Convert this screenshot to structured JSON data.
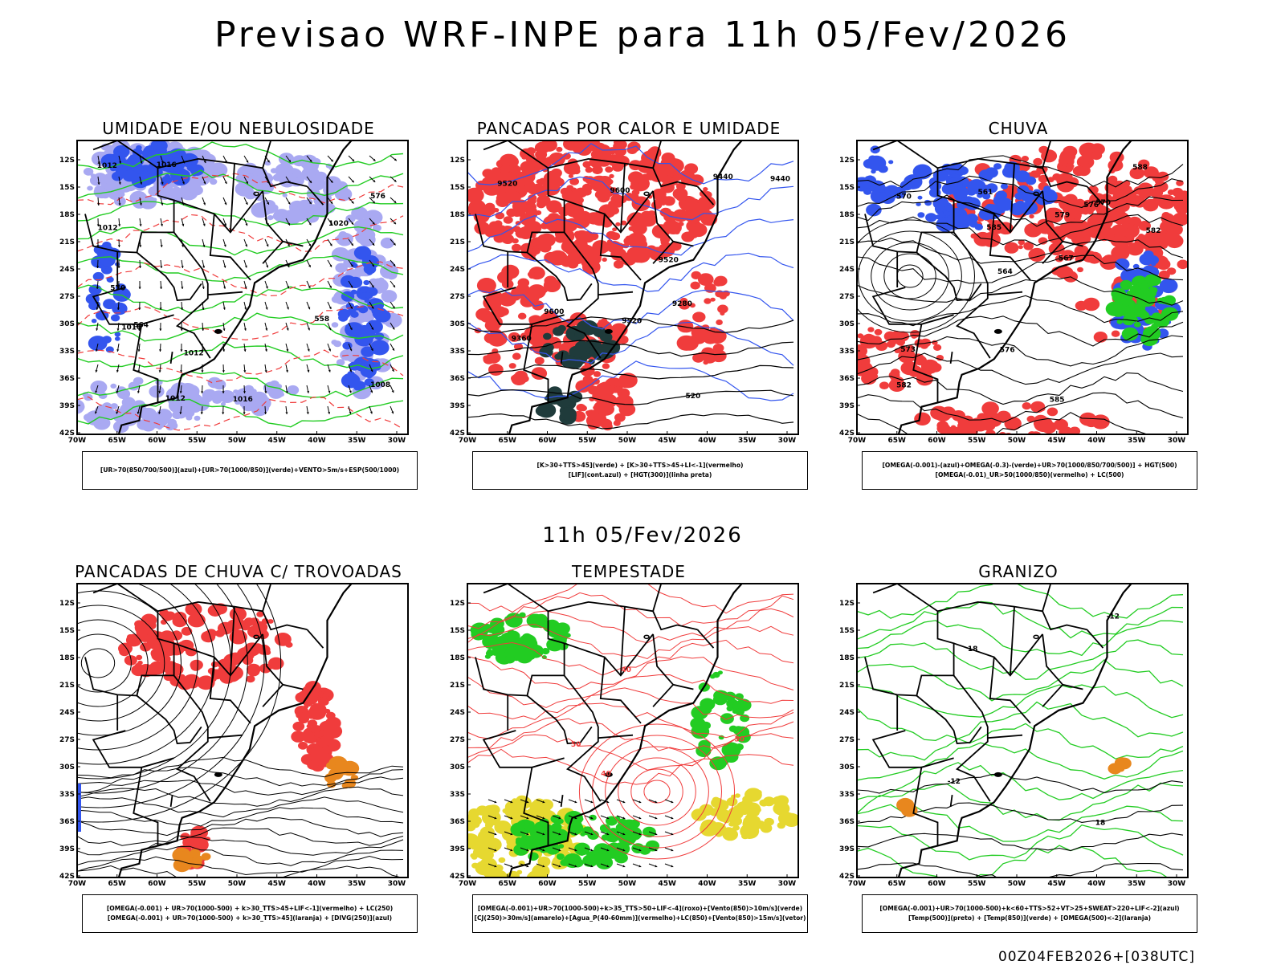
{
  "header": {
    "title": "Previsao WRF-INPE  para 11h 05/Fev/2026"
  },
  "middle": {
    "title": "11h 05/Fev/2026"
  },
  "footer": {
    "run": "00Z04FEB2026+[038UTC]"
  },
  "axes": {
    "lat_ticks": [
      "12S",
      "15S",
      "18S",
      "21S",
      "24S",
      "27S",
      "30S",
      "33S",
      "36S",
      "39S",
      "42S"
    ],
    "lon_ticks": [
      "70W",
      "65W",
      "60W",
      "55W",
      "50W",
      "45W",
      "40W",
      "35W",
      "30W"
    ]
  },
  "colors": {
    "blue": "#3355ee",
    "lavender": "#a9a9f2",
    "green": "#22cc22",
    "red": "#f03c3c",
    "orange": "#e8871e",
    "yellow": "#e6d830",
    "darkteal": "#1f3b3b"
  },
  "panels": [
    {
      "title": "UMIDADE E/OU NEBULOSIDADE",
      "legend": [
        "[UR>70(850/700/500)](azul)+[UR>70(1000/850)](verde)+VENTO>5m/s+ESP(500/1000)"
      ],
      "labels": [
        "1020",
        "1016",
        "1012",
        "1012",
        "1012",
        "1008",
        "1012",
        "1016",
        "1016",
        "576",
        "570",
        "564",
        "558"
      ]
    },
    {
      "title": "PANCADAS POR CALOR E UMIDADE",
      "legend": [
        "[K>30+TTS>45](verde) + [K>30+TTS>45+LI<-1](vermelho)",
        "[LIF](cont.azul) + [HGT(300)](linha preta)"
      ],
      "labels": [
        "9600",
        "9600",
        "9520",
        "9520",
        "9520",
        "9440",
        "9440",
        "9360",
        "9280",
        "520"
      ]
    },
    {
      "title": "CHUVA",
      "legend": [
        "[OMEGA(-0.001)-(azul)+OMEGA(-0.3)-(verde)+UR>70(1000/850/700/500)] + HGT(500)",
        "[OMEGA(-0.01)_UR>50(1000/850)(vermelho) + LC(500)"
      ],
      "labels": [
        "585",
        "585",
        "582",
        "588",
        "582",
        "579",
        "576",
        "573",
        "570",
        "576",
        "570",
        "567",
        "561",
        "564"
      ]
    },
    {
      "title": "PANCADAS DE CHUVA C/ TROVOADAS",
      "legend": [
        "[OMEGA(-0.001) + UR>70(1000-500) + k>30_TTS>45+LIF<-1](vermelho) + LC(250)",
        "[OMEGA(-0.001) + UR>70(1000-500) + k>30_TTS>45](laranja) + [DIVG(250)](azul)"
      ],
      "labels": []
    },
    {
      "title": "TEMPESTADE",
      "legend": [
        "[OMEGA(-0.001)+UR>70(1000-500)+k>35_TTS>50+LIF<-4](roxo)+[Vento(850)>10m/s](verde)",
        "[CJ(250)>30m/s](amarelo)+[Agua_P(40-60mm)](vermelho)+LC(850)+[Vento(850)>15m/s](vetor)"
      ],
      "labels": [
        "40",
        "50",
        "50",
        "40"
      ]
    },
    {
      "title": "GRANIZO",
      "legend": [
        "[OMEGA(-0.001)+UR>70(1000-500)+k<60+TTS>52+VT>25+SWEAT>220+LIF<-2](azul)",
        "[Temp(500)](preto) + [Temp(850)](verde) + [OMEGA(500)<-2](laranja)"
      ],
      "labels": [
        "-12",
        "-12",
        "18",
        "18"
      ]
    }
  ]
}
